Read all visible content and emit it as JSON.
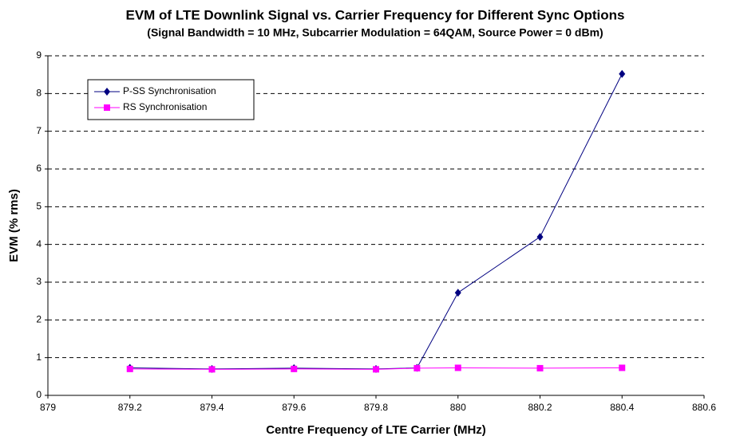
{
  "chart_data": {
    "type": "line",
    "title": "EVM of LTE Downlink Signal vs. Carrier Frequency for Different Sync Options",
    "subtitle": "(Signal Bandwidth = 10 MHz, Subcarrier Modulation = 64QAM, Source Power = 0 dBm)",
    "x_label": "Centre Frequency of LTE Carrier (MHz)",
    "y_label": "EVM (% rms)",
    "x": [
      879.2,
      879.4,
      879.6,
      879.8,
      879.9,
      880,
      880.2,
      880.4
    ],
    "series": [
      {
        "name": "P-SS Synchronisation",
        "color": "#000080",
        "marker": "diamond",
        "values": [
          0.73,
          0.7,
          0.72,
          0.7,
          0.73,
          2.72,
          4.2,
          8.52
        ]
      },
      {
        "name": "RS Synchronisation",
        "color": "#ff00ff",
        "marker": "square",
        "values": [
          0.7,
          0.69,
          0.7,
          0.69,
          0.72,
          0.73,
          0.72,
          0.73
        ]
      }
    ],
    "xlim": [
      879,
      880.6
    ],
    "xticks": [
      879,
      879.2,
      879.4,
      879.6,
      879.8,
      880,
      880.2,
      880.4,
      880.6
    ],
    "ylim": [
      0,
      9
    ],
    "yticks": [
      0,
      1,
      2,
      3,
      4,
      5,
      6,
      7,
      8,
      9
    ],
    "grid": true,
    "legend": "upper left"
  }
}
